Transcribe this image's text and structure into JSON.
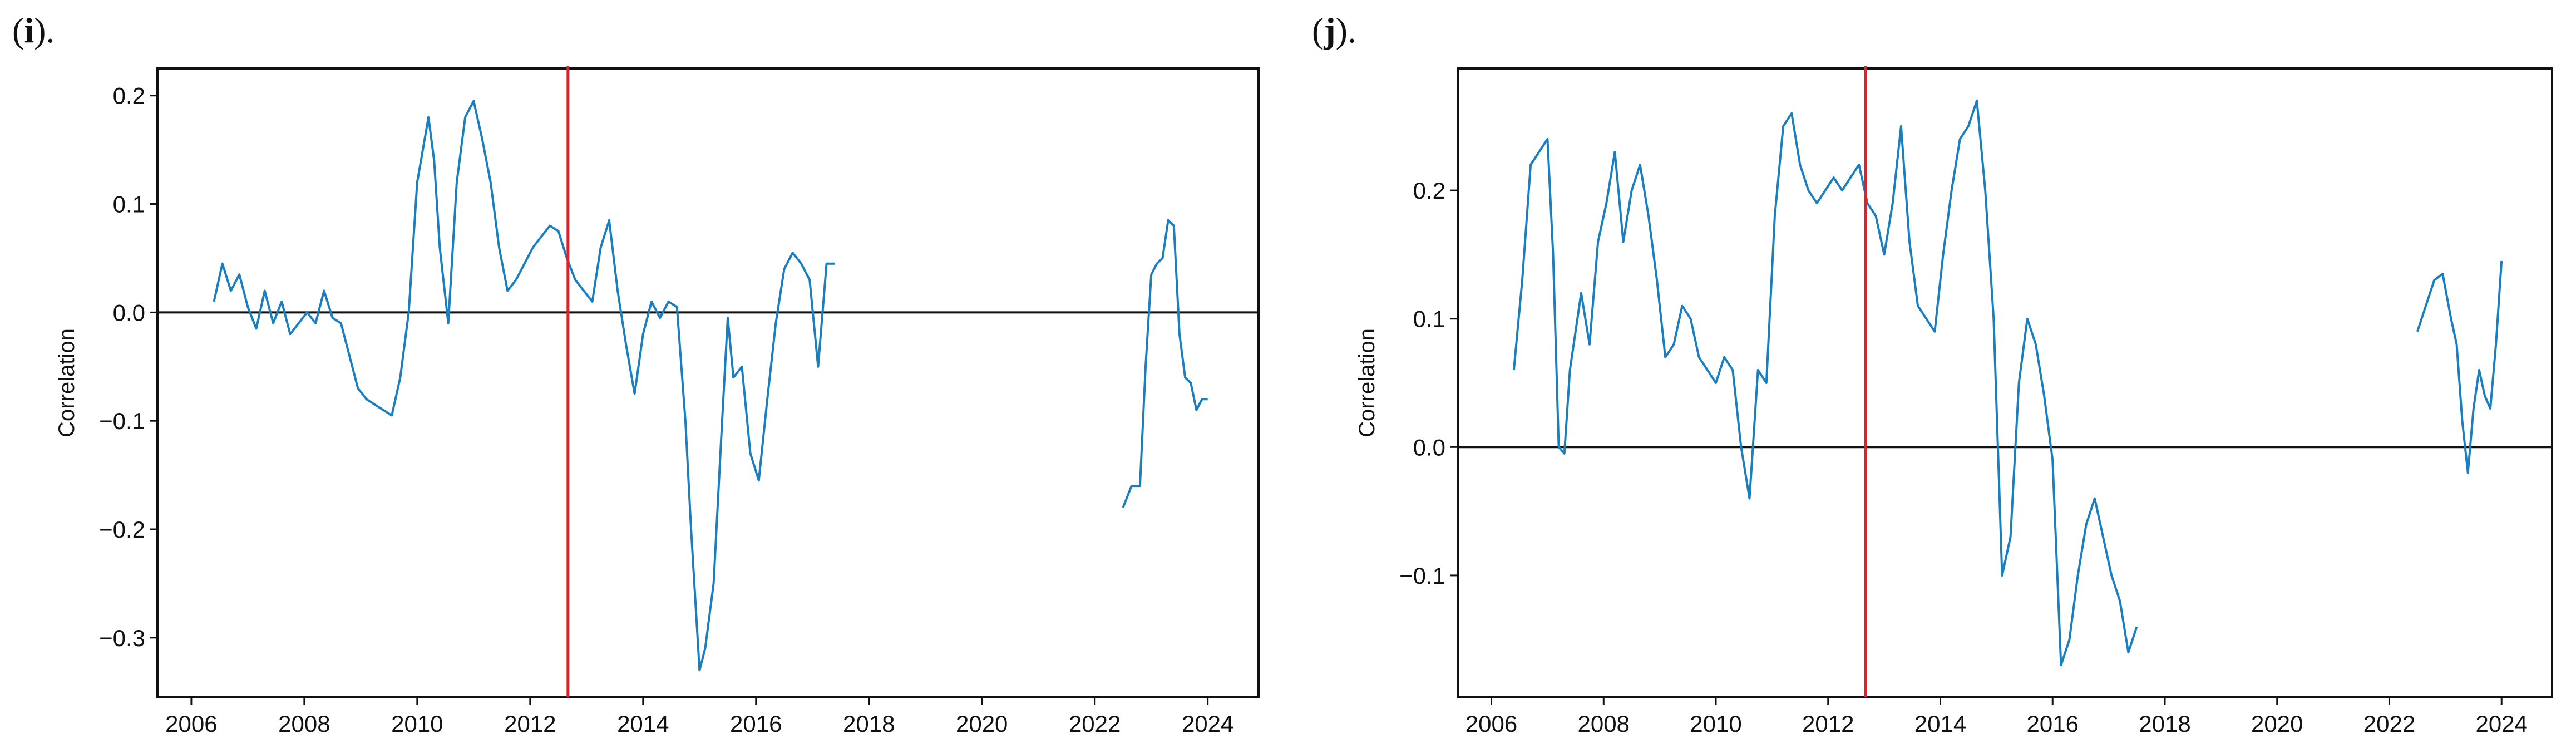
{
  "chart_data": [
    {
      "panel_label": "i",
      "type": "line",
      "ylabel": "Correlation",
      "xlim": [
        2005.4,
        2024.9
      ],
      "ylim": [
        -0.355,
        0.225
      ],
      "xticks": [
        2006,
        2008,
        2010,
        2012,
        2014,
        2016,
        2018,
        2020,
        2022,
        2024
      ],
      "yticks": [
        0.2,
        0.1,
        0.0,
        -0.1,
        -0.2,
        -0.3
      ],
      "ytick_labels": [
        "0.2",
        "0.1",
        "0.0",
        "−0.1",
        "−0.2",
        "−0.3"
      ],
      "vline_x": 2012.67,
      "hline_y": 0.0,
      "colors": {
        "series": "#1a7fc1",
        "vline": "#e0202a",
        "hline": "#111111"
      },
      "series": [
        {
          "x": [
            2006.4,
            2006.55,
            2006.7,
            2006.85,
            2007.0,
            2007.15,
            2007.3,
            2007.45,
            2007.6,
            2007.75,
            2007.9,
            2008.05,
            2008.2,
            2008.35,
            2008.5,
            2008.65,
            2008.8,
            2008.95,
            2009.1,
            2009.25,
            2009.4,
            2009.55,
            2009.7,
            2009.85,
            2010.0,
            2010.1,
            2010.2,
            2010.3,
            2010.4,
            2010.55,
            2010.7,
            2010.85,
            2011.0,
            2011.15,
            2011.3,
            2011.45,
            2011.6,
            2011.75,
            2011.9,
            2012.05,
            2012.2,
            2012.35,
            2012.5,
            2012.65,
            2012.8,
            2012.95,
            2013.1,
            2013.25,
            2013.4,
            2013.55,
            2013.7,
            2013.85,
            2014.0,
            2014.15,
            2014.3,
            2014.45,
            2014.6,
            2014.75,
            2014.85,
            2015.0,
            2015.1,
            2015.25,
            2015.4,
            2015.5,
            2015.6,
            2015.75,
            2015.9,
            2016.05,
            2016.2,
            2016.35,
            2016.5,
            2016.65,
            2016.8,
            2016.95,
            2017.1,
            2017.25,
            2017.4
          ],
          "y": [
            0.01,
            0.045,
            0.02,
            0.035,
            0.005,
            -0.015,
            0.02,
            -0.01,
            0.01,
            -0.02,
            -0.01,
            0.0,
            -0.01,
            0.02,
            -0.005,
            -0.01,
            -0.04,
            -0.07,
            -0.08,
            -0.085,
            -0.09,
            -0.095,
            -0.06,
            0.0,
            0.12,
            0.15,
            0.18,
            0.14,
            0.06,
            -0.01,
            0.12,
            0.18,
            0.195,
            0.16,
            0.12,
            0.06,
            0.02,
            0.03,
            0.045,
            0.06,
            0.07,
            0.08,
            0.075,
            0.05,
            0.03,
            0.02,
            0.01,
            0.06,
            0.085,
            0.02,
            -0.03,
            -0.075,
            -0.02,
            0.01,
            -0.005,
            0.01,
            0.005,
            -0.1,
            -0.2,
            -0.33,
            -0.31,
            -0.25,
            -0.1,
            -0.005,
            -0.06,
            -0.05,
            -0.13,
            -0.155,
            -0.08,
            -0.01,
            0.04,
            0.055,
            0.045,
            0.03,
            -0.05,
            0.045,
            0.045
          ]
        },
        {
          "x": [
            2022.5,
            2022.65,
            2022.8,
            2022.9,
            2023.0,
            2023.1,
            2023.2,
            2023.3,
            2023.4,
            2023.5,
            2023.6,
            2023.7,
            2023.8,
            2023.9,
            2024.0
          ],
          "y": [
            -0.18,
            -0.16,
            -0.16,
            -0.05,
            0.035,
            0.045,
            0.05,
            0.085,
            0.08,
            -0.02,
            -0.06,
            -0.065,
            -0.09,
            -0.08,
            -0.08
          ]
        }
      ]
    },
    {
      "panel_label": "j",
      "type": "line",
      "ylabel": "Correlation",
      "xlim": [
        2005.4,
        2024.9
      ],
      "ylim": [
        -0.195,
        0.295
      ],
      "xticks": [
        2006,
        2008,
        2010,
        2012,
        2014,
        2016,
        2018,
        2020,
        2022,
        2024
      ],
      "yticks": [
        0.2,
        0.1,
        0.0,
        -0.1
      ],
      "ytick_labels": [
        "0.2",
        "0.1",
        "0.0",
        "−0.1"
      ],
      "vline_x": 2012.67,
      "hline_y": 0.0,
      "colors": {
        "series": "#1a7fc1",
        "vline": "#e0202a",
        "hline": "#111111"
      },
      "series": [
        {
          "x": [
            2006.4,
            2006.55,
            2006.7,
            2006.85,
            2007.0,
            2007.1,
            2007.2,
            2007.3,
            2007.4,
            2007.5,
            2007.6,
            2007.75,
            2007.9,
            2008.05,
            2008.2,
            2008.35,
            2008.5,
            2008.65,
            2008.8,
            2008.95,
            2009.1,
            2009.25,
            2009.4,
            2009.55,
            2009.7,
            2009.85,
            2010.0,
            2010.15,
            2010.3,
            2010.45,
            2010.6,
            2010.75,
            2010.9,
            2011.05,
            2011.2,
            2011.35,
            2011.5,
            2011.65,
            2011.8,
            2011.95,
            2012.1,
            2012.25,
            2012.4,
            2012.55,
            2012.7,
            2012.85,
            2013.0,
            2013.15,
            2013.3,
            2013.45,
            2013.6,
            2013.75,
            2013.9,
            2014.05,
            2014.2,
            2014.35,
            2014.5,
            2014.65,
            2014.8,
            2014.95,
            2015.1,
            2015.25,
            2015.4,
            2015.55,
            2015.7,
            2015.85,
            2016.0,
            2016.15,
            2016.3,
            2016.45,
            2016.6,
            2016.75,
            2016.9,
            2017.05,
            2017.2,
            2017.35,
            2017.5
          ],
          "y": [
            0.06,
            0.13,
            0.22,
            0.23,
            0.24,
            0.15,
            0.0,
            -0.005,
            0.06,
            0.09,
            0.12,
            0.08,
            0.16,
            0.19,
            0.23,
            0.16,
            0.2,
            0.22,
            0.18,
            0.13,
            0.07,
            0.08,
            0.11,
            0.1,
            0.07,
            0.06,
            0.05,
            0.07,
            0.06,
            0.0,
            -0.04,
            0.06,
            0.05,
            0.18,
            0.25,
            0.26,
            0.22,
            0.2,
            0.19,
            0.2,
            0.21,
            0.2,
            0.21,
            0.22,
            0.19,
            0.18,
            0.15,
            0.19,
            0.25,
            0.16,
            0.11,
            0.1,
            0.09,
            0.15,
            0.2,
            0.24,
            0.25,
            0.27,
            0.2,
            0.1,
            -0.1,
            -0.07,
            0.05,
            0.1,
            0.08,
            0.04,
            -0.01,
            -0.17,
            -0.15,
            -0.1,
            -0.06,
            -0.04,
            -0.07,
            -0.1,
            -0.12,
            -0.16,
            -0.14
          ]
        },
        {
          "x": [
            2022.5,
            2022.65,
            2022.8,
            2022.95,
            2023.1,
            2023.2,
            2023.3,
            2023.4,
            2023.5,
            2023.6,
            2023.7,
            2023.8,
            2023.9,
            2024.0
          ],
          "y": [
            0.09,
            0.11,
            0.13,
            0.135,
            0.1,
            0.08,
            0.02,
            -0.02,
            0.03,
            0.06,
            0.04,
            0.03,
            0.08,
            0.145
          ]
        }
      ]
    }
  ]
}
